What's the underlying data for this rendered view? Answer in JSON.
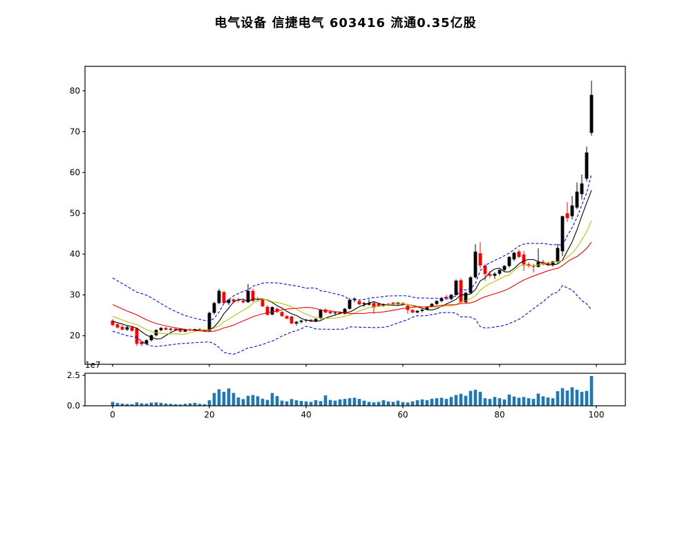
{
  "title": "电气设备  信捷电气  603416  流通0.35亿股",
  "chart_data": {
    "type": "candlestick",
    "title": "电气设备 信捷电气 603416 流通0.35亿股",
    "x": {
      "ticks": [
        0,
        20,
        40,
        60,
        80,
        100
      ],
      "count": 100
    },
    "panels": {
      "price": {
        "ylim": [
          13,
          86
        ],
        "yticks": [
          20,
          30,
          40,
          50,
          60,
          70,
          80
        ],
        "candle_up_color": "#000000",
        "candle_down_color": "#ff0000",
        "ohlc": [
          [
            23.7,
            24.1,
            22.3,
            22.6
          ],
          [
            22.8,
            23.1,
            21.8,
            22.0
          ],
          [
            22.2,
            22.6,
            21.3,
            21.5
          ],
          [
            21.5,
            22.4,
            21.2,
            22.1
          ],
          [
            22.1,
            22.3,
            21.0,
            21.2
          ],
          [
            21.8,
            22.0,
            17.5,
            18.0
          ],
          [
            18.6,
            18.9,
            17.4,
            17.9
          ],
          [
            18.0,
            19.1,
            17.8,
            18.9
          ],
          [
            18.9,
            20.3,
            18.6,
            20.1
          ],
          [
            20.1,
            21.6,
            19.9,
            21.4
          ],
          [
            21.4,
            22.1,
            21.1,
            21.9
          ],
          [
            21.9,
            22.2,
            21.3,
            21.5
          ],
          [
            21.5,
            21.9,
            21.1,
            21.7
          ],
          [
            21.7,
            22.0,
            21.2,
            21.4
          ],
          [
            21.4,
            21.7,
            20.8,
            21.0
          ],
          [
            21.0,
            21.7,
            20.9,
            21.5
          ],
          [
            21.5,
            21.8,
            21.1,
            21.3
          ],
          [
            21.3,
            21.7,
            21.0,
            21.6
          ],
          [
            21.6,
            21.9,
            21.1,
            21.3
          ],
          [
            21.3,
            21.6,
            20.9,
            21.1
          ],
          [
            21.2,
            25.9,
            21.0,
            25.6
          ],
          [
            25.6,
            28.3,
            25.2,
            28.0
          ],
          [
            28.0,
            31.5,
            27.7,
            31.0
          ],
          [
            30.7,
            31.0,
            27.8,
            28.0
          ],
          [
            28.0,
            29.0,
            27.5,
            28.8
          ],
          [
            28.9,
            29.2,
            28.0,
            28.4
          ],
          [
            28.8,
            29.3,
            28.2,
            28.6
          ],
          [
            28.6,
            28.9,
            27.9,
            28.2
          ],
          [
            28.2,
            32.7,
            28.0,
            31.0
          ],
          [
            31.0,
            31.5,
            28.2,
            28.5
          ],
          [
            29.0,
            29.5,
            28.4,
            28.9
          ],
          [
            28.9,
            29.1,
            27.0,
            27.2
          ],
          [
            27.1,
            27.5,
            25.0,
            25.1
          ],
          [
            25.2,
            27.2,
            25.0,
            27.0
          ],
          [
            26.6,
            26.9,
            25.6,
            25.8
          ],
          [
            25.8,
            26.0,
            24.6,
            24.8
          ],
          [
            24.8,
            25.1,
            24.0,
            24.2
          ],
          [
            24.7,
            24.9,
            22.8,
            23.0
          ],
          [
            23.0,
            23.6,
            22.5,
            23.4
          ],
          [
            23.4,
            23.9,
            23.0,
            23.7
          ],
          [
            23.7,
            24.1,
            23.3,
            23.9
          ],
          [
            23.9,
            24.1,
            23.3,
            23.5
          ],
          [
            23.5,
            24.3,
            23.3,
            24.1
          ],
          [
            24.3,
            26.6,
            24.0,
            26.4
          ],
          [
            26.4,
            26.7,
            25.5,
            25.7
          ],
          [
            25.9,
            26.2,
            25.3,
            25.5
          ],
          [
            25.5,
            25.9,
            25.1,
            25.7
          ],
          [
            25.8,
            26.0,
            25.2,
            25.4
          ],
          [
            25.4,
            26.8,
            25.2,
            26.6
          ],
          [
            26.6,
            29.3,
            26.4,
            28.8
          ],
          [
            28.8,
            29.4,
            28.2,
            29.1
          ],
          [
            28.5,
            28.8,
            27.5,
            27.7
          ],
          [
            27.7,
            28.3,
            27.1,
            28.0
          ],
          [
            27.6,
            28.9,
            27.4,
            28.0
          ],
          [
            28.0,
            28.2,
            25.4,
            26.9
          ],
          [
            27.8,
            28.0,
            27.1,
            27.3
          ],
          [
            27.3,
            27.9,
            27.1,
            27.7
          ],
          [
            27.8,
            28.0,
            27.2,
            27.4
          ],
          [
            28.1,
            28.3,
            27.5,
            27.7
          ],
          [
            27.7,
            28.3,
            27.5,
            28.1
          ],
          [
            28.0,
            28.2,
            27.3,
            27.5
          ],
          [
            27.4,
            27.6,
            25.4,
            26.3
          ],
          [
            26.3,
            26.6,
            25.5,
            25.7
          ],
          [
            25.7,
            26.3,
            25.5,
            26.1
          ],
          [
            26.1,
            26.6,
            25.7,
            26.4
          ],
          [
            26.4,
            27.3,
            26.2,
            27.1
          ],
          [
            27.1,
            28.0,
            26.9,
            27.8
          ],
          [
            27.8,
            28.7,
            27.5,
            28.5
          ],
          [
            28.5,
            29.5,
            28.2,
            29.2
          ],
          [
            29.5,
            30.0,
            28.8,
            29.0
          ],
          [
            29.0,
            30.3,
            28.7,
            30.0
          ],
          [
            30.0,
            33.8,
            29.8,
            33.5
          ],
          [
            33.6,
            34.1,
            27.9,
            28.2
          ],
          [
            28.2,
            30.8,
            28.0,
            30.5
          ],
          [
            30.5,
            34.6,
            30.2,
            34.3
          ],
          [
            34.3,
            42.4,
            34.0,
            40.6
          ],
          [
            40.2,
            42.9,
            36.5,
            37.2
          ],
          [
            37.2,
            37.6,
            33.5,
            35.1
          ],
          [
            35.1,
            35.8,
            34.2,
            34.7
          ],
          [
            34.7,
            35.6,
            33.9,
            35.2
          ],
          [
            35.2,
            36.3,
            34.8,
            36.1
          ],
          [
            36.1,
            37.3,
            35.7,
            37.1
          ],
          [
            37.1,
            39.5,
            36.7,
            39.3
          ],
          [
            38.7,
            40.6,
            38.3,
            40.3
          ],
          [
            40.6,
            41.1,
            39.0,
            39.3
          ],
          [
            39.9,
            40.8,
            35.9,
            37.3
          ],
          [
            37.5,
            38.0,
            36.7,
            37.1
          ],
          [
            37.2,
            37.6,
            35.5,
            36.9
          ],
          [
            36.9,
            41.4,
            36.7,
            38.1
          ],
          [
            38.1,
            38.6,
            37.2,
            37.5
          ],
          [
            37.8,
            38.1,
            37.1,
            37.3
          ],
          [
            37.3,
            38.4,
            36.9,
            38.2
          ],
          [
            38.1,
            42.5,
            37.8,
            41.5
          ],
          [
            40.7,
            49.4,
            39.5,
            49.3
          ],
          [
            50.0,
            52.7,
            47.9,
            48.8
          ],
          [
            49.3,
            54.2,
            48.5,
            51.9
          ],
          [
            51.4,
            57.6,
            51.0,
            55.3
          ],
          [
            54.7,
            59.5,
            53.4,
            57.3
          ],
          [
            58.5,
            66.3,
            57.8,
            64.9
          ],
          [
            69.7,
            82.5,
            69.0,
            79.0
          ]
        ],
        "overlays": {
          "ma_fast": {
            "period": 5,
            "color": "#000000"
          },
          "ma_mid": {
            "period": 10,
            "color": "#bfbf00"
          },
          "ma_slow": {
            "period": 20,
            "color": "#ff0000"
          },
          "bollinger": {
            "period": 20,
            "mult": 2,
            "color": "#0000ff",
            "style": "dashed"
          },
          "pre_window_closes": [
            33.2,
            32.6,
            32.0,
            31.4,
            30.8,
            30.2,
            29.6,
            29.0,
            28.4,
            27.8,
            27.2,
            26.6,
            26.0,
            25.4,
            24.8,
            24.2,
            23.8,
            23.5,
            23.2,
            23.0
          ]
        }
      },
      "volume": {
        "unit": "1e7",
        "offset_label": "1e7",
        "ylim_e7": [
          0,
          2.67
        ],
        "ytick_values": [
          0.0,
          2.5
        ],
        "ytick_labels": [
          "0.0",
          "2.5"
        ],
        "bar_color": "#1f77b4",
        "values_e7": [
          0.32,
          0.22,
          0.18,
          0.15,
          0.13,
          0.28,
          0.2,
          0.18,
          0.26,
          0.28,
          0.24,
          0.18,
          0.16,
          0.13,
          0.11,
          0.16,
          0.2,
          0.24,
          0.16,
          0.13,
          0.45,
          1.05,
          1.35,
          1.15,
          1.42,
          1.05,
          0.68,
          0.55,
          0.82,
          0.88,
          0.78,
          0.58,
          0.48,
          1.05,
          0.8,
          0.42,
          0.36,
          0.55,
          0.45,
          0.4,
          0.36,
          0.32,
          0.46,
          0.38,
          0.85,
          0.48,
          0.42,
          0.52,
          0.56,
          0.62,
          0.66,
          0.56,
          0.42,
          0.32,
          0.28,
          0.32,
          0.46,
          0.36,
          0.32,
          0.42,
          0.3,
          0.27,
          0.36,
          0.46,
          0.52,
          0.46,
          0.58,
          0.62,
          0.66,
          0.56,
          0.72,
          0.88,
          0.98,
          0.82,
          1.22,
          1.32,
          1.15,
          0.62,
          0.56,
          0.72,
          0.62,
          0.52,
          0.92,
          0.76,
          0.66,
          0.72,
          0.62,
          0.56,
          1.0,
          0.78,
          0.68,
          0.62,
          1.2,
          1.45,
          1.25,
          1.52,
          1.32,
          1.15,
          1.22,
          2.45
        ]
      }
    }
  }
}
